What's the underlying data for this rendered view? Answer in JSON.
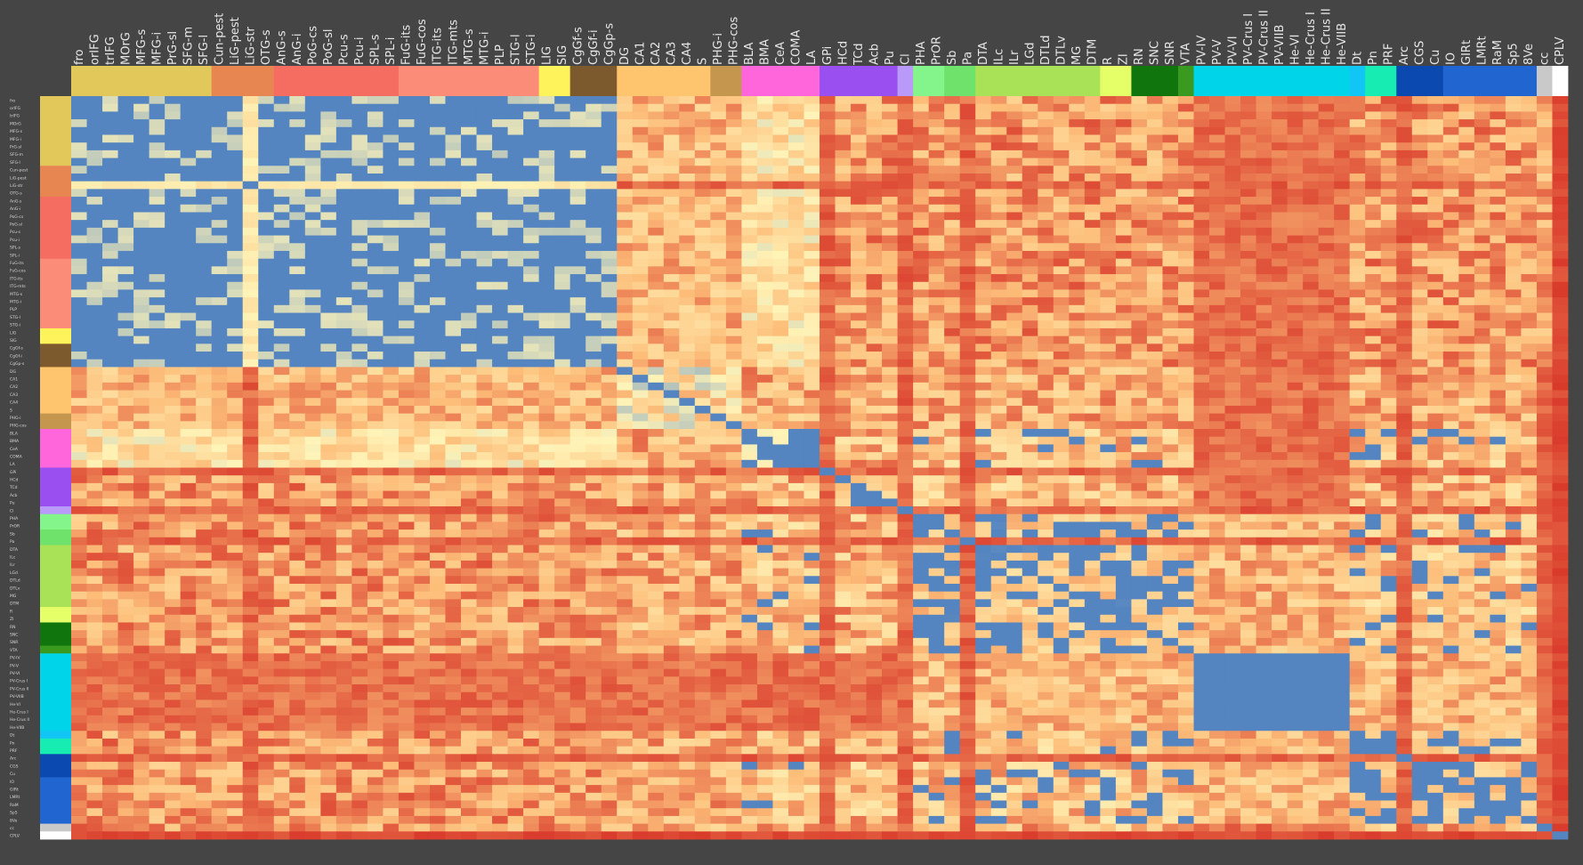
{
  "chart_data": {
    "type": "heatmap",
    "title": "",
    "xlabel": "",
    "ylabel": "",
    "legend": "none",
    "grid": false,
    "colorscale": {
      "low": "#5585c0",
      "mid": "#fff4b8",
      "high": "#d93a2b"
    },
    "groups": [
      {
        "color": "#e2c85a",
        "labels": [
          "fro",
          "orIFG",
          "trIFG",
          "MOrG",
          "MFG-s",
          "MFG-i",
          "PrG-sl",
          "SFG-m",
          "SFG-l"
        ]
      },
      {
        "color": "#e88652",
        "labels": [
          "Cun-pest",
          "LiG-pest",
          "LiG-str",
          "OTG-s"
        ]
      },
      {
        "color": "#f56d60",
        "labels": [
          "AnG-s",
          "AnG-i",
          "PoG-cs",
          "PoG-sl",
          "Pcu-s",
          "Pcu-i",
          "SPL-s",
          "SPL-i"
        ]
      },
      {
        "color": "#fa8c78",
        "labels": [
          "FuG-its",
          "FuG-cos",
          "ITG-its",
          "ITG-mts",
          "MTG-s",
          "MTG-i",
          "PLP",
          "STG-l",
          "STG-i"
        ]
      },
      {
        "color": "#fff35c",
        "labels": [
          "LIG",
          "SIG"
        ]
      },
      {
        "color": "#7d5a2e",
        "labels": [
          "CgGf-s",
          "CgGf-i",
          "CgGp-s"
        ]
      },
      {
        "color": "#ffc56e",
        "labels": [
          "DG",
          "CA1",
          "CA2",
          "CA3",
          "CA4",
          "S"
        ]
      },
      {
        "color": "#c4964e",
        "labels": [
          "PHG-i",
          "PHG-cos"
        ]
      },
      {
        "color": "#ff66dc",
        "labels": [
          "BLA",
          "BMA",
          "CeA",
          "COMA",
          "LA"
        ]
      },
      {
        "color": "#9a4ff0",
        "labels": [
          "GPi",
          "HCd",
          "TCd",
          "Acb",
          "Pu"
        ]
      },
      {
        "color": "#b99af8",
        "labels": [
          "Cl"
        ]
      },
      {
        "color": "#83f58a",
        "labels": [
          "PHA",
          "PrOR"
        ]
      },
      {
        "color": "#6ee26a",
        "labels": [
          "Sb",
          "Pa"
        ]
      },
      {
        "color": "#a9e256",
        "labels": [
          "DTA",
          "ILc",
          "ILr",
          "LGd",
          "DTLd",
          "DTLv",
          "MG",
          "DTM"
        ]
      },
      {
        "color": "#e5ff69",
        "labels": [
          "R",
          "ZI"
        ]
      },
      {
        "color": "#11750e",
        "labels": [
          "RN",
          "SNC",
          "SNR"
        ]
      },
      {
        "color": "#3a9a20",
        "labels": [
          "VTA"
        ]
      },
      {
        "color": "#00d4e8",
        "labels": [
          "PV-IV",
          "PV-V",
          "PV-VI",
          "PV-Crus I",
          "PV-Crus II",
          "PV-VIIB",
          "He-VI",
          "He-Crus I",
          "He-Crus II",
          "He-VIIB"
        ]
      },
      {
        "color": "#11c6f5",
        "labels": [
          "Dt"
        ]
      },
      {
        "color": "#17ecb2",
        "labels": [
          "Pn",
          "PRF"
        ]
      },
      {
        "color": "#0b49b0",
        "labels": [
          "Arc",
          "CGS",
          "Cu"
        ]
      },
      {
        "color": "#2166d0",
        "labels": [
          "IO",
          "GIRt",
          "LMRt",
          "RaM",
          "Sp5",
          "8Ve"
        ]
      },
      {
        "color": "#c9c9c9",
        "labels": [
          "cc"
        ]
      },
      {
        "color": "#ffffff",
        "labels": [
          "CPLV"
        ]
      }
    ]
  }
}
